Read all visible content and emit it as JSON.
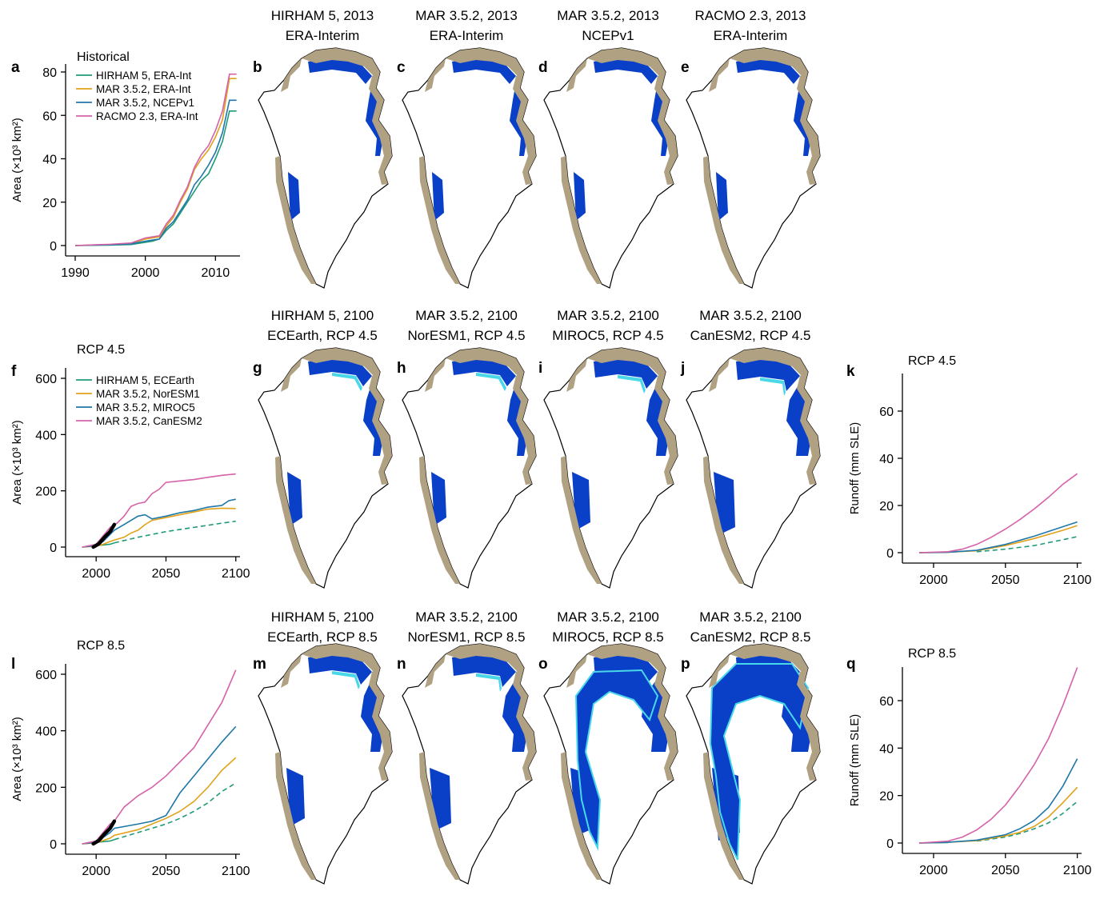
{
  "colors": {
    "teal_green": "#1f9a7a",
    "orange": "#e1a21a",
    "blue": "#1f77a8",
    "pink": "#d562a8",
    "observed": "#000000",
    "land": "#b1a183",
    "runoff_zone": "#0a3fc8",
    "extra_zone": "#49d8e8",
    "ice_outline": "#000000"
  },
  "map_titles": {
    "b": [
      "HIRHAM 5, 2013",
      "ERA-Interim"
    ],
    "c": [
      "MAR 3.5.2, 2013",
      "ERA-Interim"
    ],
    "d": [
      "MAR 3.5.2, 2013",
      "NCEPv1"
    ],
    "e": [
      "RACMO 2.3, 2013",
      "ERA-Interim"
    ],
    "g": [
      "HIRHAM 5, 2100",
      "ECEarth, RCP 4.5"
    ],
    "h": [
      "MAR 3.5.2, 2100",
      "NorESM1, RCP 4.5"
    ],
    "i": [
      "MAR 3.5.2, 2100",
      "MIROC5, RCP 4.5"
    ],
    "j": [
      "MAR 3.5.2, 2100",
      "CanESM2, RCP 4.5"
    ],
    "m": [
      "HIRHAM 5, 2100",
      "ECEarth, RCP 8.5"
    ],
    "n": [
      "MAR 3.5.2, 2100",
      "NorESM1, RCP 8.5"
    ],
    "o": [
      "MAR 3.5.2, 2100",
      "MIROC5, RCP 8.5"
    ],
    "p": [
      "MAR 3.5.2, 2100",
      "CanESM2, RCP 8.5"
    ]
  },
  "chart_data": [
    {
      "panel": "a",
      "type": "line",
      "title": "Historical",
      "ylabel": "Area (×10³ km²)",
      "xlim": [
        1990,
        2013.5
      ],
      "ylim": [
        0,
        80
      ],
      "xticks": [
        "1990",
        "2000",
        "2010"
      ],
      "yticks": [
        "0",
        "20",
        "40",
        "60",
        "80"
      ],
      "legend": [
        "HIRHAM 5, ERA-Int",
        "MAR 3.5.2, ERA-Int",
        "MAR 3.5.2, NCEPv1",
        "RACMO 2.3, ERA-Int"
      ],
      "series": [
        {
          "name": "HIRHAM 5, ERA-Int",
          "color": "teal_green",
          "x": [
            1990,
            1995,
            1998,
            2000,
            2001,
            2002,
            2003,
            2004,
            2005,
            2006,
            2007,
            2008,
            2009,
            2010,
            2011,
            2012,
            2013
          ],
          "values": [
            0,
            0.2,
            0.5,
            1.5,
            2,
            3,
            7,
            10,
            15,
            20,
            25,
            30,
            33,
            40,
            48,
            62,
            62
          ]
        },
        {
          "name": "MAR 3.5.2, ERA-Int",
          "color": "orange",
          "x": [
            1990,
            1995,
            1998,
            2000,
            2001,
            2002,
            2003,
            2004,
            2005,
            2006,
            2007,
            2008,
            2009,
            2010,
            2011,
            2012,
            2013
          ],
          "values": [
            0,
            0.5,
            1,
            3,
            3.5,
            4,
            9,
            13,
            20,
            26,
            35,
            40,
            44,
            50,
            58,
            77,
            77
          ]
        },
        {
          "name": "MAR 3.5.2, NCEPv1",
          "color": "blue",
          "x": [
            1990,
            1995,
            1998,
            2000,
            2001,
            2002,
            2003,
            2004,
            2005,
            2006,
            2007,
            2008,
            2009,
            2010,
            2011,
            2012,
            2013
          ],
          "values": [
            0,
            0.4,
            0.8,
            2,
            2.5,
            3,
            8,
            11,
            16,
            21,
            28,
            32,
            37,
            43,
            52,
            67,
            67
          ]
        },
        {
          "name": "RACMO 2.3, ERA-Int",
          "color": "pink",
          "x": [
            1990,
            1995,
            1998,
            2000,
            2001,
            2002,
            2003,
            2004,
            2005,
            2006,
            2007,
            2008,
            2009,
            2010,
            2011,
            2012,
            2013
          ],
          "values": [
            0,
            0.6,
            1.2,
            3.5,
            4,
            4.5,
            10,
            14,
            21,
            27,
            36,
            42,
            46,
            53,
            62,
            79,
            79
          ]
        }
      ]
    },
    {
      "panel": "f",
      "type": "line",
      "title": "RCP 4.5",
      "ylabel": "Area (×10³ km²)",
      "xlim": [
        1985,
        2103
      ],
      "ylim": [
        0,
        600
      ],
      "xticks": [
        "2000",
        "2050",
        "2100"
      ],
      "yticks": [
        "0",
        "200",
        "400",
        "600"
      ],
      "legend": [
        "HIRHAM 5, ECEarth",
        "MAR 3.5.2, NorESM1",
        "MAR 3.5.2, MIROC5",
        "MAR 3.5.2, CanESM2"
      ],
      "series": [
        {
          "name": "HIRHAM 5, ECEarth",
          "color": "teal_green",
          "dashed_after": 2013,
          "x": [
            1990,
            2000,
            2010,
            2013,
            2030,
            2050,
            2070,
            2090,
            2100
          ],
          "values": [
            0,
            5,
            10,
            15,
            35,
            55,
            70,
            85,
            92
          ]
        },
        {
          "name": "MAR 3.5.2, NorESM1",
          "color": "orange",
          "x": [
            1990,
            2000,
            2005,
            2010,
            2013,
            2020,
            2025,
            2030,
            2035,
            2040,
            2050,
            2060,
            2070,
            2080,
            2090,
            2100
          ],
          "values": [
            0,
            3,
            10,
            20,
            25,
            35,
            50,
            60,
            80,
            95,
            105,
            115,
            125,
            135,
            138,
            137
          ]
        },
        {
          "name": "MAR 3.5.2, MIROC5",
          "color": "blue",
          "x": [
            1990,
            2000,
            2005,
            2010,
            2013,
            2020,
            2030,
            2035,
            2040,
            2050,
            2060,
            2070,
            2080,
            2090,
            2095,
            2100
          ],
          "values": [
            0,
            5,
            20,
            45,
            60,
            80,
            110,
            115,
            100,
            110,
            122,
            130,
            142,
            148,
            165,
            170
          ]
        },
        {
          "name": "MAR 3.5.2, CanESM2",
          "color": "pink",
          "x": [
            1990,
            2000,
            2005,
            2010,
            2015,
            2020,
            2025,
            2030,
            2035,
            2040,
            2045,
            2050,
            2060,
            2070,
            2080,
            2090,
            2100
          ],
          "values": [
            0,
            10,
            40,
            70,
            85,
            110,
            145,
            155,
            160,
            190,
            205,
            230,
            235,
            240,
            248,
            255,
            260
          ]
        },
        {
          "name": "Observed",
          "color": "observed",
          "x": [
            1998,
            2002,
            2006,
            2010,
            2013
          ],
          "values": [
            0,
            12,
            35,
            55,
            80
          ]
        }
      ]
    },
    {
      "panel": "k",
      "type": "line",
      "title": "RCP 4.5",
      "ylabel": "Runoff (mm SLE)",
      "xlim": [
        1985,
        2103
      ],
      "ylim": [
        0,
        70
      ],
      "xticks": [
        "2000",
        "2050",
        "2100"
      ],
      "yticks": [
        "0",
        "20",
        "40",
        "60"
      ],
      "series": [
        {
          "name": "HIRHAM 5, ECEarth",
          "color": "teal_green",
          "dashed_after": 2013,
          "x": [
            1990,
            2010,
            2030,
            2050,
            2070,
            2090,
            2100
          ],
          "values": [
            0,
            0.1,
            0.4,
            1.5,
            3,
            5.5,
            6.8
          ]
        },
        {
          "name": "MAR 3.5.2, NorESM1",
          "color": "orange",
          "x": [
            1990,
            2010,
            2030,
            2050,
            2070,
            2090,
            2100
          ],
          "values": [
            0,
            0.2,
            0.8,
            3,
            6,
            9.5,
            11.5
          ]
        },
        {
          "name": "MAR 3.5.2, MIROC5",
          "color": "blue",
          "x": [
            1990,
            2010,
            2030,
            2050,
            2070,
            2090,
            2100
          ],
          "values": [
            0,
            0.2,
            1,
            3.5,
            7,
            11,
            13
          ]
        },
        {
          "name": "MAR 3.5.2, CanESM2",
          "color": "pink",
          "x": [
            1990,
            2010,
            2020,
            2030,
            2040,
            2050,
            2060,
            2070,
            2080,
            2090,
            2100
          ],
          "values": [
            0,
            0.4,
            1.5,
            3.5,
            6.5,
            10,
            14,
            18.5,
            23.5,
            29,
            33.5
          ]
        }
      ]
    },
    {
      "panel": "l",
      "type": "line",
      "title": "RCP 8.5",
      "ylabel": "Area (×10³ km²)",
      "xlim": [
        1985,
        2103
      ],
      "ylim": [
        0,
        600
      ],
      "xticks": [
        "2000",
        "2050",
        "2100"
      ],
      "yticks": [
        "0",
        "200",
        "400",
        "600"
      ],
      "series": [
        {
          "name": "HIRHAM 5, ECEarth",
          "color": "teal_green",
          "dashed_after": 2013,
          "x": [
            1990,
            2000,
            2010,
            2013,
            2030,
            2050,
            2060,
            2070,
            2080,
            2090,
            2100
          ],
          "values": [
            0,
            5,
            10,
            15,
            40,
            70,
            90,
            115,
            145,
            185,
            215
          ]
        },
        {
          "name": "MAR 3.5.2, NorESM1",
          "color": "orange",
          "x": [
            1990,
            2000,
            2010,
            2013,
            2030,
            2040,
            2050,
            2060,
            2070,
            2080,
            2090,
            2100
          ],
          "values": [
            0,
            3,
            20,
            30,
            50,
            70,
            90,
            115,
            150,
            200,
            260,
            305
          ]
        },
        {
          "name": "MAR 3.5.2, MIROC5",
          "color": "blue",
          "x": [
            1990,
            2000,
            2010,
            2013,
            2030,
            2040,
            2050,
            2060,
            2070,
            2080,
            2090,
            2100
          ],
          "values": [
            0,
            5,
            40,
            55,
            70,
            80,
            100,
            180,
            240,
            300,
            360,
            415
          ]
        },
        {
          "name": "MAR 3.5.2, CanESM2",
          "color": "pink",
          "x": [
            1990,
            2000,
            2010,
            2013,
            2020,
            2030,
            2040,
            2050,
            2060,
            2070,
            2080,
            2090,
            2100
          ],
          "values": [
            0,
            10,
            70,
            80,
            130,
            170,
            200,
            240,
            290,
            340,
            420,
            500,
            615
          ]
        },
        {
          "name": "Observed",
          "color": "observed",
          "x": [
            1998,
            2002,
            2006,
            2010,
            2013
          ],
          "values": [
            0,
            12,
            35,
            55,
            80
          ]
        }
      ]
    },
    {
      "panel": "q",
      "type": "line",
      "title": "RCP 8.5",
      "ylabel": "Runoff (mm SLE)",
      "xlim": [
        1985,
        2103
      ],
      "ylim": [
        0,
        70
      ],
      "xticks": [
        "2000",
        "2050",
        "2100"
      ],
      "yticks": [
        "0",
        "20",
        "40",
        "60"
      ],
      "series": [
        {
          "name": "HIRHAM 5, ECEarth",
          "color": "teal_green",
          "dashed_after": 2013,
          "x": [
            1990,
            2010,
            2030,
            2050,
            2060,
            2070,
            2080,
            2090,
            2100
          ],
          "values": [
            0,
            0.2,
            0.8,
            2.5,
            4,
            6,
            8.5,
            12.5,
            17.5
          ]
        },
        {
          "name": "MAR 3.5.2, NorESM1",
          "color": "orange",
          "x": [
            1990,
            2010,
            2030,
            2050,
            2060,
            2070,
            2080,
            2090,
            2100
          ],
          "values": [
            0,
            0.3,
            1,
            3,
            4.5,
            7,
            11,
            17,
            23.5
          ]
        },
        {
          "name": "MAR 3.5.2, MIROC5",
          "color": "blue",
          "x": [
            1990,
            2010,
            2030,
            2050,
            2060,
            2070,
            2080,
            2090,
            2100
          ],
          "values": [
            0,
            0.3,
            1.2,
            3.5,
            6,
            9.5,
            15,
            24,
            35.5
          ]
        },
        {
          "name": "MAR 3.5.2, CanESM2",
          "color": "pink",
          "x": [
            1990,
            2010,
            2020,
            2030,
            2040,
            2050,
            2060,
            2070,
            2080,
            2090,
            2100
          ],
          "values": [
            0,
            0.8,
            2.5,
            5.5,
            10,
            16,
            24,
            33,
            44,
            58,
            74
          ]
        }
      ]
    }
  ],
  "panel_labels": [
    "a",
    "b",
    "c",
    "d",
    "e",
    "f",
    "g",
    "h",
    "i",
    "j",
    "k",
    "l",
    "m",
    "n",
    "o",
    "p",
    "q"
  ]
}
